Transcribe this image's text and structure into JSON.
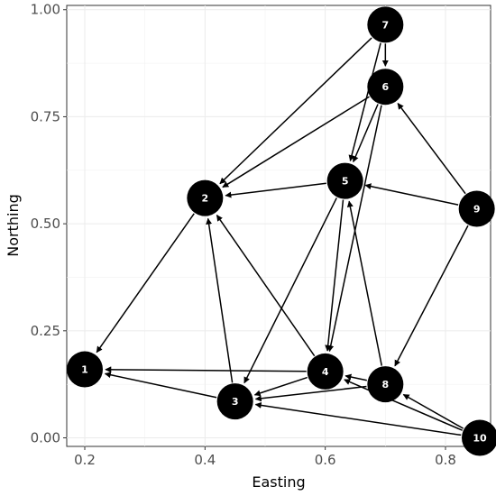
{
  "chart_data": {
    "type": "network",
    "xlabel": "Easting",
    "ylabel": "Northing",
    "xlim": [
      0.17,
      0.875
    ],
    "ylim": [
      -0.02,
      1.01
    ],
    "x_ticks": [
      {
        "value": 0.2,
        "label": "0.2"
      },
      {
        "value": 0.4,
        "label": "0.4"
      },
      {
        "value": 0.6,
        "label": "0.6"
      },
      {
        "value": 0.8,
        "label": "0.8"
      }
    ],
    "y_ticks": [
      {
        "value": 0.0,
        "label": "0.00"
      },
      {
        "value": 0.25,
        "label": "0.25"
      },
      {
        "value": 0.5,
        "label": "0.50"
      },
      {
        "value": 0.75,
        "label": "0.75"
      },
      {
        "value": 1.0,
        "label": "1.00"
      }
    ],
    "grid": true,
    "node_color": "#000000",
    "node_label_color": "#ffffff",
    "edge_color": "#000000",
    "nodes": [
      {
        "id": "1",
        "label": "1",
        "x": 0.2,
        "y": 0.16
      },
      {
        "id": "2",
        "label": "2",
        "x": 0.4,
        "y": 0.56
      },
      {
        "id": "3",
        "label": "3",
        "x": 0.45,
        "y": 0.085
      },
      {
        "id": "4",
        "label": "4",
        "x": 0.6,
        "y": 0.155
      },
      {
        "id": "5",
        "label": "5",
        "x": 0.633,
        "y": 0.6
      },
      {
        "id": "6",
        "label": "6",
        "x": 0.7,
        "y": 0.82
      },
      {
        "id": "7",
        "label": "7",
        "x": 0.7,
        "y": 0.965
      },
      {
        "id": "8",
        "label": "8",
        "x": 0.7,
        "y": 0.125
      },
      {
        "id": "9",
        "label": "9",
        "x": 0.852,
        "y": 0.535
      },
      {
        "id": "10",
        "label": "10",
        "x": 0.857,
        "y": 0.0
      }
    ],
    "edges": [
      {
        "from": "7",
        "to": "6"
      },
      {
        "from": "7",
        "to": "2"
      },
      {
        "from": "7",
        "to": "5"
      },
      {
        "from": "6",
        "to": "2"
      },
      {
        "from": "6",
        "to": "5"
      },
      {
        "from": "6",
        "to": "4"
      },
      {
        "from": "9",
        "to": "6"
      },
      {
        "from": "9",
        "to": "5"
      },
      {
        "from": "9",
        "to": "8"
      },
      {
        "from": "5",
        "to": "2"
      },
      {
        "from": "5",
        "to": "4"
      },
      {
        "from": "5",
        "to": "3"
      },
      {
        "from": "2",
        "to": "1"
      },
      {
        "from": "3",
        "to": "2"
      },
      {
        "from": "4",
        "to": "2"
      },
      {
        "from": "4",
        "to": "1"
      },
      {
        "from": "3",
        "to": "1"
      },
      {
        "from": "4",
        "to": "3"
      },
      {
        "from": "8",
        "to": "5"
      },
      {
        "from": "8",
        "to": "4"
      },
      {
        "from": "8",
        "to": "3"
      },
      {
        "from": "10",
        "to": "8"
      },
      {
        "from": "10",
        "to": "4"
      },
      {
        "from": "10",
        "to": "3"
      }
    ]
  }
}
